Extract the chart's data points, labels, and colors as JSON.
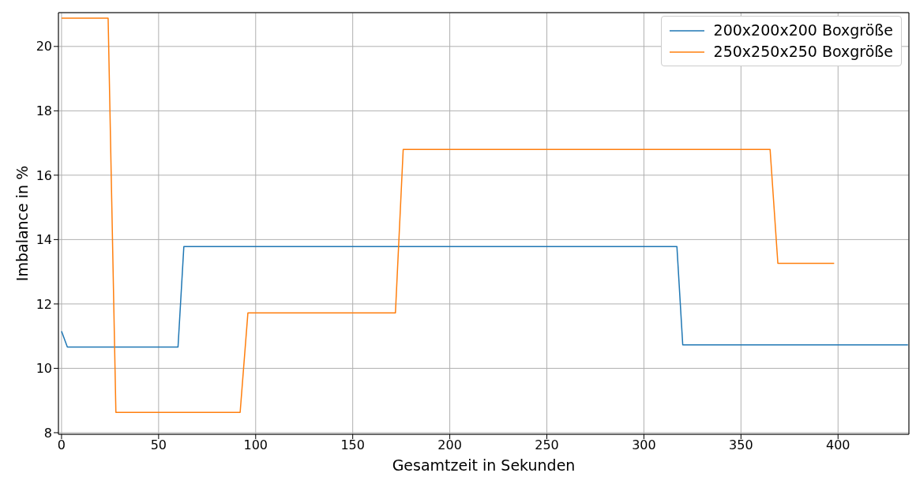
{
  "chart_data": {
    "type": "line",
    "xlabel": "Gesamtzeit in Sekunden",
    "ylabel": "Imbalance in %",
    "xlim": [
      -1.6,
      436.5
    ],
    "xticks": [
      0,
      50,
      100,
      150,
      200,
      250,
      300,
      350,
      400
    ],
    "ylim": [
      7.95,
      21.05
    ],
    "yticks": [
      8,
      10,
      12,
      14,
      16,
      18,
      20
    ],
    "grid": true,
    "legend": "top right",
    "marker": "none",
    "line_style": "solid",
    "series": [
      {
        "name": "200x200x200 Boxgröße",
        "color": "#1f77b4",
        "x": [
          0,
          3,
          60,
          63,
          317,
          320,
          436
        ],
        "values": [
          11.15,
          10.66,
          10.66,
          13.78,
          13.78,
          10.73,
          10.73
        ]
      },
      {
        "name": "250x250x250 Boxgröße",
        "color": "#ff7f0e",
        "x": [
          0,
          24,
          28,
          92,
          96,
          172,
          176,
          365,
          369,
          398
        ],
        "values": [
          20.88,
          20.88,
          8.63,
          8.63,
          11.72,
          11.72,
          16.8,
          16.8,
          13.26,
          13.26
        ]
      }
    ]
  }
}
